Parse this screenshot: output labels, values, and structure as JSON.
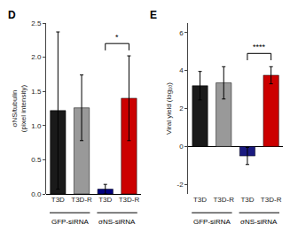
{
  "chart_data": [
    {
      "type": "bar",
      "title": "D",
      "categories": [
        "T3D",
        "T3D-R",
        "T3D",
        "T3D-R"
      ],
      "values": [
        1.22,
        1.26,
        0.07,
        1.4
      ],
      "errors": [
        1.15,
        0.48,
        0.07,
        0.62
      ],
      "colors": [
        "#1a1a1a",
        "#999999",
        "#000080",
        "#cc0000"
      ],
      "ylabel": "σNS/tubulin\n(pixel intensity)",
      "ylim": [
        0,
        2.5
      ],
      "yticks": [
        {
          "value": 0,
          "label": "0.0"
        },
        0.5,
        {
          "value": 1,
          "label": "1.0"
        },
        1.5,
        {
          "value": 2,
          "label": "2.0"
        },
        2.5
      ],
      "grid": false,
      "annotations": [
        {
          "text": "GFP-siRNA",
          "x": [
            0,
            1
          ]
        },
        {
          "text": "σNS-siRNA",
          "x": [
            2,
            3
          ]
        },
        {
          "text": "*",
          "x": [
            2,
            3
          ],
          "y": 2.2
        }
      ]
    },
    {
      "type": "bar",
      "title": "E",
      "categories": [
        "T3D",
        "T3D-R",
        "T3D",
        "T3D-R"
      ],
      "values": [
        3.2,
        3.35,
        -0.5,
        3.75
      ],
      "errors": [
        0.75,
        0.85,
        0.45,
        0.45
      ],
      "colors": [
        "#1a1a1a",
        "#999999",
        "#1a1a80",
        "#cc0000"
      ],
      "ylabel": "Viral yield (log₁₀)",
      "ylim": [
        -2.5,
        6.5
      ],
      "yticks": [
        -2,
        0,
        2,
        4,
        6
      ],
      "grid": false,
      "annotations": [
        {
          "text": "GFP-siRNA",
          "x": [
            0,
            1
          ]
        },
        {
          "text": "σNS-siRNA",
          "x": [
            2,
            3
          ]
        },
        {
          "text": "****",
          "x": [
            2,
            3
          ],
          "y": 4.9
        }
      ]
    }
  ]
}
